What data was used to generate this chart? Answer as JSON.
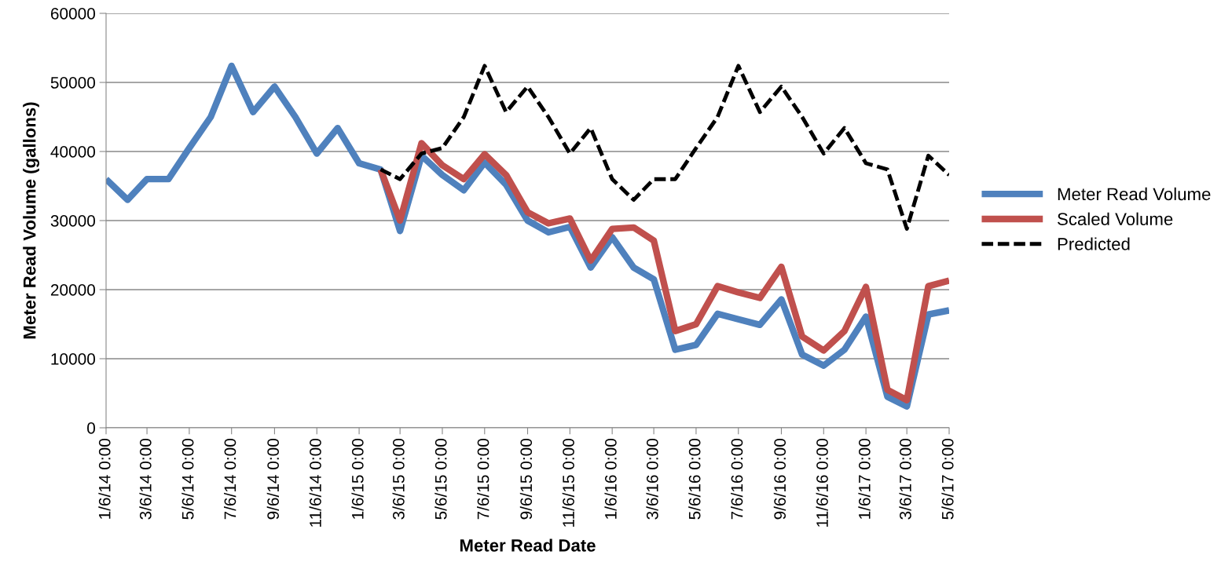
{
  "chart_data": {
    "type": "line",
    "xlabel": "Meter Read Date",
    "ylabel": "Meter Read Volume (gallons)",
    "x": [
      "2014-01-06",
      "2014-02-06",
      "2014-03-06",
      "2014-04-06",
      "2014-05-06",
      "2014-06-06",
      "2014-07-06",
      "2014-08-06",
      "2014-09-06",
      "2014-10-06",
      "2014-11-06",
      "2014-12-06",
      "2015-01-06",
      "2015-02-06",
      "2015-03-06",
      "2015-04-06",
      "2015-05-06",
      "2015-06-06",
      "2015-07-06",
      "2015-08-06",
      "2015-09-06",
      "2015-10-06",
      "2015-11-06",
      "2015-12-06",
      "2016-01-06",
      "2016-02-06",
      "2016-03-06",
      "2016-04-06",
      "2016-05-06",
      "2016-06-06",
      "2016-07-06",
      "2016-08-06",
      "2016-09-06",
      "2016-10-06",
      "2016-11-06",
      "2016-12-06",
      "2017-01-06",
      "2017-02-06",
      "2017-03-06",
      "2017-04-06",
      "2017-05-06"
    ],
    "series": [
      {
        "name": "Meter Read Volume",
        "color": "#4f81bd",
        "line_style": "solid",
        "values": [
          36000,
          33000,
          36000,
          36000,
          40500,
          45000,
          52400,
          45700,
          49400,
          45000,
          39700,
          43400,
          38300,
          37400,
          28500,
          39400,
          36600,
          34400,
          38400,
          35200,
          30000,
          28300,
          29100,
          23200,
          27600,
          23200,
          21500,
          11300,
          12000,
          16500,
          15700,
          14900,
          18600,
          10600,
          9000,
          11300,
          16100,
          4500,
          3100,
          16400,
          17000
        ]
      },
      {
        "name": "Scaled Volume",
        "color": "#c0504d",
        "line_style": "solid",
        "values": [
          null,
          null,
          null,
          null,
          null,
          null,
          null,
          null,
          null,
          null,
          null,
          null,
          null,
          37400,
          30000,
          41200,
          38000,
          36000,
          39600,
          36600,
          31200,
          29600,
          30300,
          24200,
          28800,
          29000,
          27100,
          14000,
          15000,
          20500,
          19600,
          18800,
          23300,
          13200,
          11200,
          14000,
          20400,
          5500,
          4000,
          20500,
          21300
        ]
      },
      {
        "name": "Predicted",
        "color": "#000000",
        "line_style": "dashed",
        "values": [
          null,
          null,
          null,
          null,
          null,
          null,
          null,
          null,
          null,
          null,
          null,
          null,
          null,
          37400,
          36000,
          39700,
          40500,
          45000,
          52400,
          45700,
          49400,
          45000,
          39700,
          43400,
          36000,
          33000,
          36000,
          36000,
          40500,
          45000,
          52400,
          45700,
          49400,
          45000,
          39700,
          43400,
          38300,
          37400,
          28800,
          39400,
          36600
        ]
      }
    ],
    "xlim": [
      "2014-01-06",
      "2017-05-06"
    ],
    "xticks": [
      {
        "value": "2014-01-06",
        "label": "1/6/14 0:00"
      },
      {
        "value": "2014-03-06",
        "label": "3/6/14 0:00"
      },
      {
        "value": "2014-05-06",
        "label": "5/6/14 0:00"
      },
      {
        "value": "2014-07-06",
        "label": "7/6/14 0:00"
      },
      {
        "value": "2014-09-06",
        "label": "9/6/14 0:00"
      },
      {
        "value": "2014-11-06",
        "label": "11/6/14 0:00"
      },
      {
        "value": "2015-01-06",
        "label": "1/6/15 0:00"
      },
      {
        "value": "2015-03-06",
        "label": "3/6/15 0:00"
      },
      {
        "value": "2015-05-06",
        "label": "5/6/15 0:00"
      },
      {
        "value": "2015-07-06",
        "label": "7/6/15 0:00"
      },
      {
        "value": "2015-09-06",
        "label": "9/6/15 0:00"
      },
      {
        "value": "2015-11-06",
        "label": "11/6/15 0:00"
      },
      {
        "value": "2016-01-06",
        "label": "1/6/16 0:00"
      },
      {
        "value": "2016-03-06",
        "label": "3/6/16 0:00"
      },
      {
        "value": "2016-05-06",
        "label": "5/6/16 0:00"
      },
      {
        "value": "2016-07-06",
        "label": "7/6/16 0:00"
      },
      {
        "value": "2016-09-06",
        "label": "9/6/16 0:00"
      },
      {
        "value": "2016-11-06",
        "label": "11/6/16 0:00"
      },
      {
        "value": "2017-01-06",
        "label": "1/6/17 0:00"
      },
      {
        "value": "2017-03-06",
        "label": "3/6/17 0:00"
      },
      {
        "value": "2017-05-06",
        "label": "5/6/17 0:00"
      }
    ],
    "ylim": [
      0,
      60000
    ],
    "yticks": [
      0,
      10000,
      20000,
      30000,
      40000,
      50000,
      60000
    ],
    "grid": "y",
    "legend": "right",
    "marker": "none"
  }
}
